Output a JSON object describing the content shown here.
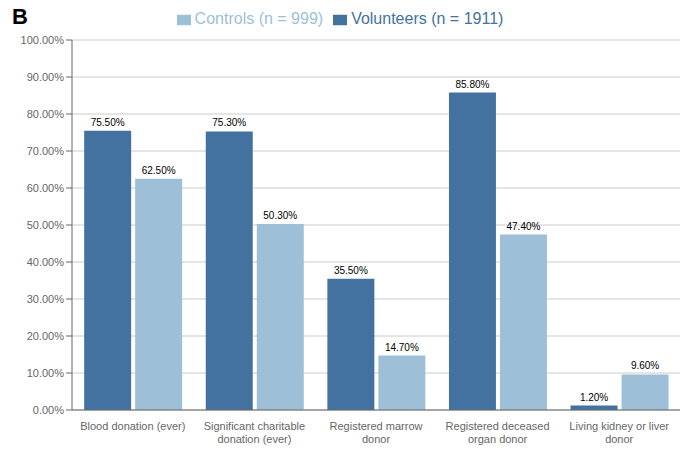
{
  "chart_data": {
    "type": "bar",
    "title": "B",
    "categories": [
      "Blood donation (ever)",
      "Significant charitable\ndonation (ever)",
      "Registered marrow\ndonor",
      "Registered deceased\norgan donor",
      "Living kidney or liver\ndonor"
    ],
    "series": [
      {
        "name": "Volunteers (n = 1911)",
        "color": "#4472a0",
        "values": [
          75.5,
          75.3,
          35.5,
          85.8,
          1.2
        ],
        "value_labels": [
          "75.50%",
          "75.30%",
          "35.50%",
          "85.80%",
          "1.20%"
        ]
      },
      {
        "name": "Controls (n = 999)",
        "color": "#9dbfd8",
        "values": [
          62.5,
          50.3,
          14.7,
          47.4,
          9.6
        ],
        "value_labels": [
          "62.50%",
          "50.30%",
          "14.70%",
          "47.40%",
          "9.60%"
        ]
      }
    ],
    "ylim": [
      0,
      100
    ],
    "yticks": [
      {
        "value": 0,
        "label": "0.00%"
      },
      {
        "value": 10,
        "label": "10.00%"
      },
      {
        "value": 20,
        "label": "20.00%"
      },
      {
        "value": 30,
        "label": "30.00%"
      },
      {
        "value": 40,
        "label": "40.00%"
      },
      {
        "value": 50,
        "label": "50.00%"
      },
      {
        "value": 60,
        "label": "60.00%"
      },
      {
        "value": 70,
        "label": "70.00%"
      },
      {
        "value": 80,
        "label": "80.00%"
      },
      {
        "value": 90,
        "label": "90.00%"
      },
      {
        "value": 100,
        "label": "100.00%"
      }
    ],
    "grid": true,
    "legend": "top",
    "data_labels": true
  }
}
